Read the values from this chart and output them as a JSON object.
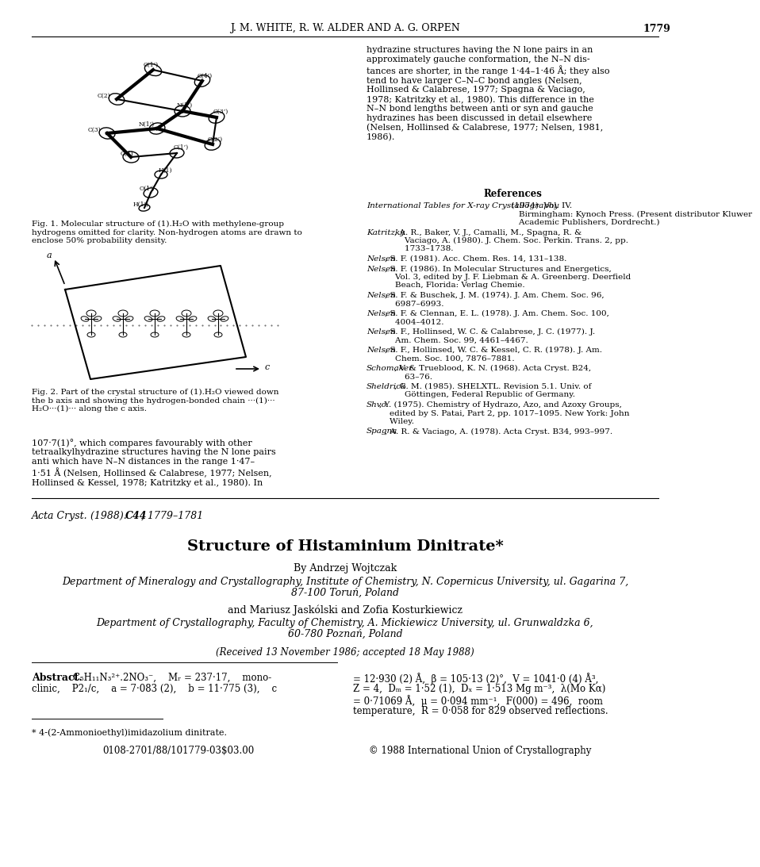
{
  "page_header": "J. M. WHITE, R. W. ALDER AND A. G. ORPEN",
  "page_number": "1779",
  "background_color": "#ffffff",
  "text_color": "#000000",
  "journal_ref_italic": "Acta Cryst.",
  "journal_ref_bold": "C44",
  "journal_ref_rest": ", 1779–1781",
  "journal_ref_year": "(1988).",
  "new_paper_title": "Structure of Histaminium Dinitrate*",
  "new_paper_author1": "By Andrzej Wojtczak",
  "new_paper_affil1_line1": "Department of Mineralogy and Crystallography, Institute of Chemistry, N. Copernicus University, ul. Gagarina 7,",
  "new_paper_affil1_line2": "87-100 Toruń, Poland",
  "new_paper_and": "and Mariusz Jaskólski and Zofia Kosturkiewicz",
  "new_paper_affil2_line1": "Department of Crystallography, Faculty of Chemistry, A. Mickiewicz University, ul. Grunwaldzka 6,",
  "new_paper_affil2_line2": "60-780 Poznań, Poland",
  "new_paper_received": "(Received 13 November 1986; accepted 18 May 1988)",
  "abstract_label": "Abstract.",
  "abstract_left1": "C₅H₁₁N₃²⁺.2NO₃⁻,    Mᵣ = 237·17,    mono-",
  "abstract_left2": "clinic,    P2₁/c,    a = 7·083 (2),    b = 11·775 (3),    c",
  "abstract_right1": "= 12·930 (2) Å,  β = 105·13 (2)°,  V = 1041·0 (4) Å³,",
  "abstract_right2": "Z = 4,  Dₘ = 1·52 (1),  Dₓ = 1·513 Mg m⁻³,  λ(Mo Kα)",
  "abstract_right3": "= 0·71069 Å,  μ = 0·094 mm⁻¹,  F(000) = 496,  room",
  "abstract_right4": "temperature,  R = 0·058 for 829 observed reflections.",
  "footnote": "* 4-(2-Ammonioethyl)imidazolium dinitrate.",
  "doi_line": "0108-2701/88/101779-03$03.00",
  "copyright_line": "© 1988 International Union of Crystallography",
  "right_col_para": "hydrazine structures having the N lone pairs in an\napproximately gauche conformation, the N–N dis-\ntances are shorter, in the range 1·44–1·46 Å; they also\ntend to have larger C–N–C bond angles (Nelsen,\nHollinsed & Calabrese, 1977; Spagna & Vaciago,\n1978; Katritzky et al., 1980). This difference in the\nN–N bond lengths between anti or syn and gauche\nhydrazines has been discussed in detail elsewhere\n(Nelsen, Hollinsed & Calabrese, 1977; Nelsen, 1981,\n1986).",
  "left_col_bottom": "107·7(1)°, which compares favourably with other\ntetraalkylhydrazine structures having the N lone pairs\nanti which have N–N distances in the range 1·47–\n1·51 Å (Nelsen, Hollinsed & Calabrese, 1977; Nelsen,\nHollinsed & Kessel, 1978; Katritzky et al., 1980). In",
  "references_header": "References",
  "refs": [
    [
      "International Tables for X-ray Crystallography",
      " (1974). Vol. IV.\n    Birmingham: Kynoch Press. (Present distributor Kluwer\n    Academic Publishers, Dordrecht.)"
    ],
    [
      "Katritzky",
      ", A. R., Baker, V. J., Camalli, M., Spagna, R. &\n    Vaciago, A. (1980). J. Chem. Soc. Perkin. Trans. 2, pp.\n    1733–1738."
    ],
    [
      "Nelsen",
      ", S. F. (1981). Acc. Chem. Res. 14, 131–138."
    ],
    [
      "Nelsen",
      ", S. F. (1986). In Molecular Structures and Energetics,\n    Vol. 3, edited by J. F. Liebman & A. Greenberg. Deerfield\n    Beach, Florida: Verlag Chemie."
    ],
    [
      "Nelsen",
      ", S. F. & Buschek, J. M. (1974). J. Am. Chem. Soc. 96,\n    6987–6993."
    ],
    [
      "Nelsen",
      ", S. F. & Clennan, E. L. (1978). J. Am. Chem. Soc. 100,\n    4004–4012."
    ],
    [
      "Nelsen",
      ", S. F., Hollinsed, W. C. & Calabrese, J. C. (1977). J.\n    Am. Chem. Soc. 99, 4461–4467."
    ],
    [
      "Nelsen",
      ", S. F., Hollinsed, W. C. & Kessel, C. R. (1978). J. Am.\n    Chem. Soc. 100, 7876–7881."
    ],
    [
      "Schomaker",
      ", V. & Trueblood, K. N. (1968). Acta Cryst. B24,\n    63–76."
    ],
    [
      "Sheldrick",
      ", G. M. (1985). SHELXTL. Revision 5.1. Univ. of\n    Göttingen, Federal Republic of Germany."
    ],
    [
      "Shvo",
      ", Y. (1975). Chemistry of Hydrazo, Azo, and Azoxy Groups,\n    edited by S. Patai, Part 2, pp. 1017–1095. New York: John\n    Wiley."
    ],
    [
      "Spagna",
      ", A. R. & Vaciago, A. (1978). Acta Cryst. B34, 993–997."
    ]
  ]
}
